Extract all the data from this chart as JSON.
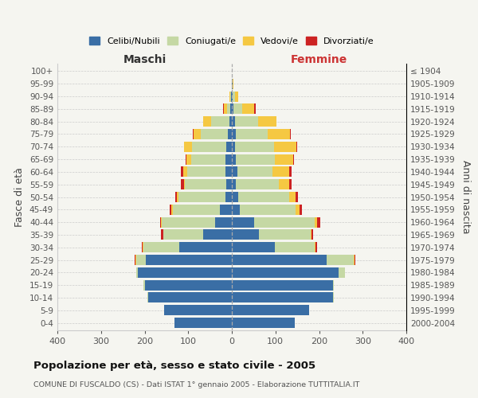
{
  "age_groups_bottom_to_top": [
    "0-4",
    "5-9",
    "10-14",
    "15-19",
    "20-24",
    "25-29",
    "30-34",
    "35-39",
    "40-44",
    "45-49",
    "50-54",
    "55-59",
    "60-64",
    "65-69",
    "70-74",
    "75-79",
    "80-84",
    "85-89",
    "90-94",
    "95-99",
    "100+"
  ],
  "birth_years_bottom_to_top": [
    "2000-2004",
    "1995-1999",
    "1990-1994",
    "1985-1989",
    "1980-1984",
    "1975-1979",
    "1970-1974",
    "1965-1969",
    "1960-1964",
    "1955-1959",
    "1950-1954",
    "1945-1949",
    "1940-1944",
    "1935-1939",
    "1930-1934",
    "1925-1929",
    "1920-1924",
    "1915-1919",
    "1910-1914",
    "1905-1909",
    "≤ 1904"
  ],
  "colors": {
    "celibe": "#3a6ea5",
    "coniugato": "#c5d8a4",
    "vedovo": "#f5c842",
    "divorziato": "#cc2222"
  },
  "maschi": {
    "celibe": [
      132,
      155,
      192,
      200,
      215,
      198,
      120,
      65,
      38,
      28,
      15,
      12,
      15,
      14,
      12,
      10,
      5,
      3,
      1,
      0,
      0
    ],
    "coniugato": [
      0,
      0,
      2,
      2,
      5,
      22,
      82,
      92,
      122,
      108,
      108,
      95,
      88,
      80,
      80,
      62,
      42,
      8,
      3,
      0,
      0
    ],
    "vedovo": [
      0,
      0,
      0,
      0,
      0,
      1,
      2,
      0,
      2,
      2,
      3,
      3,
      8,
      10,
      18,
      15,
      18,
      8,
      2,
      0,
      0
    ],
    "divorziato": [
      0,
      0,
      0,
      0,
      0,
      1,
      2,
      5,
      3,
      4,
      3,
      7,
      5,
      2,
      0,
      2,
      0,
      1,
      0,
      0,
      0
    ]
  },
  "femmine": {
    "nubile": [
      145,
      178,
      232,
      232,
      245,
      218,
      98,
      62,
      52,
      18,
      14,
      10,
      12,
      10,
      8,
      10,
      8,
      4,
      2,
      1,
      0
    ],
    "coniugata": [
      0,
      0,
      2,
      2,
      15,
      62,
      92,
      118,
      138,
      128,
      118,
      98,
      82,
      88,
      88,
      72,
      52,
      20,
      5,
      1,
      0
    ],
    "vedova": [
      0,
      0,
      0,
      0,
      0,
      2,
      2,
      2,
      5,
      10,
      15,
      24,
      38,
      42,
      52,
      52,
      42,
      28,
      8,
      2,
      0
    ],
    "divorziata": [
      0,
      0,
      0,
      0,
      0,
      1,
      3,
      5,
      8,
      5,
      5,
      5,
      5,
      2,
      2,
      2,
      0,
      2,
      0,
      0,
      0
    ]
  },
  "xlim": 400,
  "bg_color": "#f5f5f0",
  "bar_height": 0.82,
  "title": "Popolazione per età, sesso e stato civile - 2005",
  "subtitle": "COMUNE DI FUSCALDO (CS) - Dati ISTAT 1° gennaio 2005 - Elaborazione TUTTITALIA.IT",
  "legend_labels": [
    "Celibi/Nubili",
    "Coniugati/e",
    "Vedovi/e",
    "Divorziati/e"
  ],
  "label_maschi": "Maschi",
  "label_femmine": "Femmine",
  "label_fascia": "Fasce di età",
  "label_anni": "Anni di nascita"
}
